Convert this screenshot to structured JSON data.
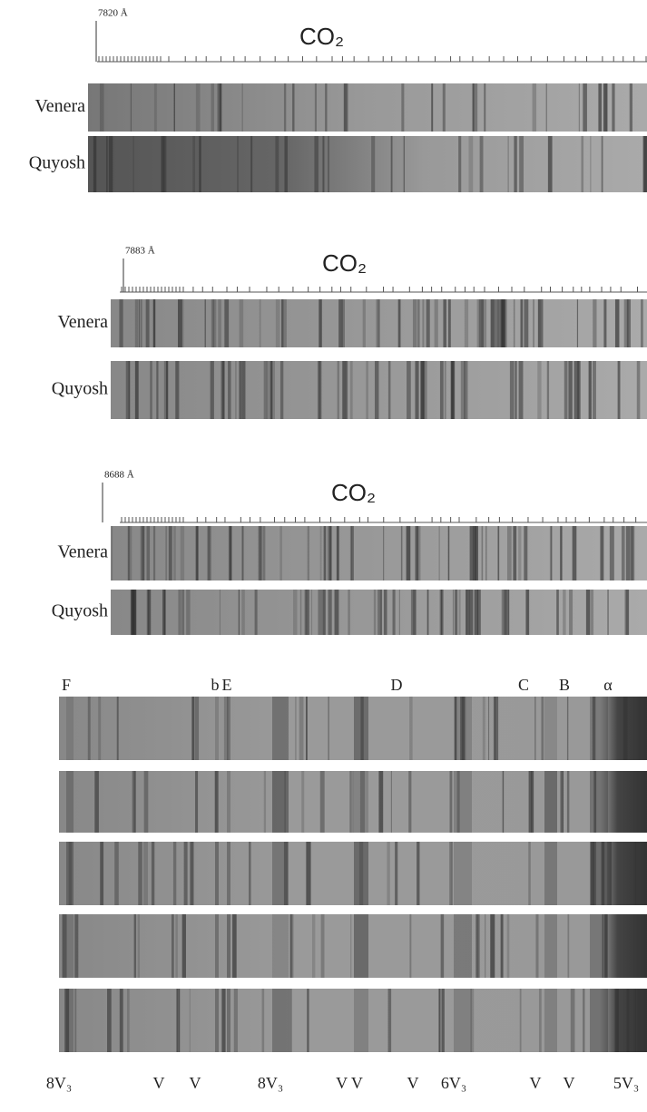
{
  "panels": [
    {
      "wavelength": "7820 Å",
      "molecule": "CO₂",
      "rows": [
        "Venera",
        "Quyosh"
      ]
    },
    {
      "wavelength": "7883 Å",
      "molecule": "CO₂",
      "rows": [
        "Venera",
        "Quyosh"
      ]
    },
    {
      "wavelength": "8688 Å",
      "molecule": "CO₂",
      "rows": [
        "Venera",
        "Quyosh"
      ]
    }
  ],
  "lines": [
    "F",
    "b",
    "E",
    "D",
    "C",
    "B",
    "α"
  ],
  "bottom_labels": [
    "8V₃",
    "V",
    "V",
    "8V₃",
    "V V",
    "V",
    "6V₃",
    "V",
    "V",
    "5V₃"
  ]
}
